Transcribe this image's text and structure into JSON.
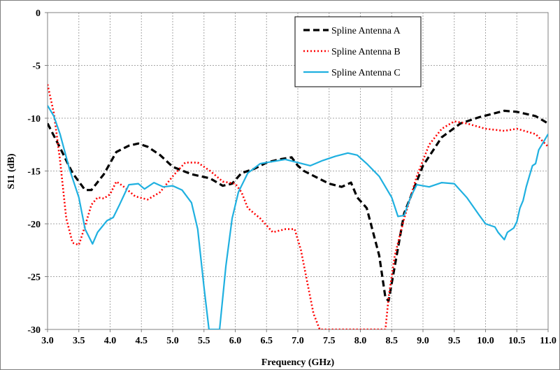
{
  "chart_data": {
    "type": "line",
    "xlabel": "Frequency (GHz)",
    "ylabel": "S11 (dB)",
    "xlim": [
      3.0,
      11.0
    ],
    "ylim": [
      -30,
      0
    ],
    "x_ticks": [
      3.0,
      3.5,
      4.0,
      4.5,
      5.0,
      5.5,
      6.0,
      6.5,
      7.0,
      7.5,
      8.0,
      8.5,
      9.0,
      9.5,
      10.0,
      10.5,
      11.0
    ],
    "x_tick_labels": [
      "3.0",
      "3.5",
      "4.0",
      "4.5",
      "5.0",
      "5.5",
      "6.0",
      "6.5",
      "7.0",
      "7.5",
      "8.0",
      "8.5",
      "9.0",
      "9.5",
      "10.0",
      "10.5",
      "11.0"
    ],
    "y_ticks": [
      0,
      -5,
      -10,
      -15,
      -20,
      -25,
      -30
    ],
    "y_tick_labels": [
      "0",
      "-5",
      "-10",
      "-15",
      "-20",
      "-25",
      "-30"
    ],
    "grid": true,
    "legend": "top-right",
    "series": [
      {
        "name": "Spline Antenna A",
        "color": "#000000",
        "style": "dashed",
        "x": [
          3.0,
          3.2,
          3.4,
          3.6,
          3.7,
          3.9,
          4.1,
          4.3,
          4.45,
          4.6,
          4.8,
          5.0,
          5.3,
          5.6,
          5.8,
          5.95,
          6.1,
          6.3,
          6.5,
          6.7,
          6.9,
          7.0,
          7.1,
          7.3,
          7.5,
          7.7,
          7.85,
          7.95,
          8.1,
          8.3,
          8.4,
          8.45,
          8.55,
          8.7,
          9.0,
          9.3,
          9.6,
          9.9,
          10.1,
          10.3,
          10.5,
          10.8,
          11.0
        ],
        "y": [
          -10.5,
          -12.8,
          -15.2,
          -16.8,
          -16.8,
          -15.3,
          -13.2,
          -12.6,
          -12.4,
          -12.7,
          -13.5,
          -14.6,
          -15.3,
          -15.7,
          -16.4,
          -16.2,
          -15.2,
          -14.8,
          -14.2,
          -13.9,
          -13.7,
          -14.5,
          -15.0,
          -15.6,
          -16.2,
          -16.5,
          -16.1,
          -17.5,
          -18.5,
          -23.0,
          -27.0,
          -27.3,
          -24.0,
          -19.0,
          -14.5,
          -11.8,
          -10.5,
          -9.9,
          -9.6,
          -9.3,
          -9.4,
          -9.8,
          -10.5
        ]
      },
      {
        "name": "Spline Antenna B",
        "color": "#ff0000",
        "style": "dotted",
        "x": [
          3.0,
          3.1,
          3.2,
          3.3,
          3.4,
          3.5,
          3.6,
          3.7,
          3.8,
          3.9,
          4.0,
          4.1,
          4.2,
          4.4,
          4.6,
          4.8,
          5.0,
          5.2,
          5.4,
          5.6,
          5.8,
          6.0,
          6.1,
          6.2,
          6.4,
          6.6,
          6.8,
          6.95,
          7.05,
          7.15,
          7.25,
          7.35,
          7.4,
          8.4,
          8.45,
          8.55,
          8.7,
          8.9,
          9.1,
          9.3,
          9.5,
          9.7,
          10.0,
          10.3,
          10.5,
          10.8,
          11.0
        ],
        "y": [
          -6.8,
          -9.5,
          -14.0,
          -19.5,
          -21.8,
          -22.0,
          -20.2,
          -18.2,
          -17.5,
          -17.6,
          -17.2,
          -16.0,
          -16.4,
          -17.4,
          -17.7,
          -17.0,
          -15.5,
          -14.2,
          -14.2,
          -15.0,
          -16.0,
          -16.2,
          -17.0,
          -18.5,
          -19.5,
          -20.8,
          -20.5,
          -20.5,
          -22.5,
          -25.5,
          -28.5,
          -30.0,
          -30.0,
          -30.0,
          -27.0,
          -23.0,
          -19.5,
          -15.5,
          -12.5,
          -11.0,
          -10.3,
          -10.5,
          -11.0,
          -11.2,
          -11.0,
          -11.5,
          -12.7
        ]
      },
      {
        "name": "Spline Antenna C",
        "color": "#1fb0e0",
        "style": "solid",
        "x": [
          3.0,
          3.1,
          3.2,
          3.35,
          3.5,
          3.6,
          3.72,
          3.8,
          3.95,
          4.05,
          4.15,
          4.3,
          4.45,
          4.55,
          4.7,
          4.85,
          5.0,
          5.15,
          5.3,
          5.4,
          5.5,
          5.58,
          5.75,
          5.85,
          5.95,
          6.05,
          6.2,
          6.4,
          6.6,
          6.8,
          7.0,
          7.2,
          7.4,
          7.6,
          7.8,
          7.95,
          8.1,
          8.3,
          8.5,
          8.6,
          8.7,
          8.8,
          8.9,
          9.1,
          9.3,
          9.5,
          9.7,
          9.9,
          10.0,
          10.15,
          10.2,
          10.3,
          10.35,
          10.45,
          10.5,
          10.55,
          10.6,
          10.65,
          10.7,
          10.75,
          10.8,
          10.85,
          10.9,
          11.0
        ],
        "y": [
          -8.8,
          -9.8,
          -11.5,
          -14.8,
          -17.5,
          -20.5,
          -21.9,
          -20.8,
          -19.7,
          -19.4,
          -18.2,
          -16.3,
          -16.2,
          -16.7,
          -16.1,
          -16.5,
          -16.4,
          -16.8,
          -18.0,
          -20.5,
          -26.0,
          -30.0,
          -30.0,
          -24.0,
          -19.5,
          -17.0,
          -15.2,
          -14.3,
          -14.1,
          -13.9,
          -14.2,
          -14.5,
          -14.0,
          -13.6,
          -13.3,
          -13.5,
          -14.3,
          -15.5,
          -17.5,
          -19.3,
          -19.2,
          -17.5,
          -16.3,
          -16.5,
          -16.1,
          -16.2,
          -17.5,
          -19.2,
          -20.0,
          -20.3,
          -20.8,
          -21.5,
          -20.8,
          -20.4,
          -19.8,
          -18.5,
          -17.8,
          -16.5,
          -15.5,
          -14.5,
          -14.3,
          -13.0,
          -12.5,
          -11.5
        ]
      }
    ]
  }
}
